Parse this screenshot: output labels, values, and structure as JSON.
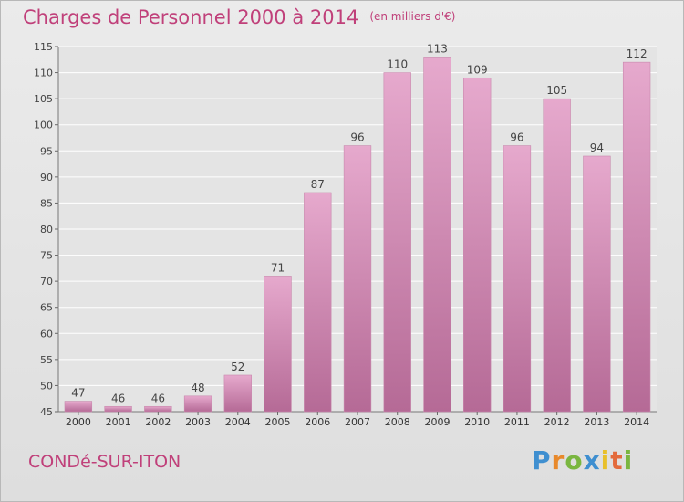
{
  "header": {
    "title": "Charges de Personnel 2000 à 2014",
    "unit": "(en milliers d'€)"
  },
  "footer": {
    "commune": "CONDé-SUR-ITON",
    "logo_letters": [
      {
        "char": "P",
        "color": "#3f8fd0"
      },
      {
        "char": "r",
        "color": "#e8892b"
      },
      {
        "char": "o",
        "color": "#7ab640"
      },
      {
        "char": "x",
        "color": "#3f8fd0"
      },
      {
        "char": "i",
        "color": "#e8c02b"
      },
      {
        "char": "t",
        "color": "#e36a3c"
      },
      {
        "char": "i",
        "color": "#7ab640"
      }
    ]
  },
  "colors": {
    "bar_top": "#e6a9cd",
    "bar_bottom": "#b56a96",
    "title": "#c0407a"
  },
  "chart_data": {
    "type": "bar",
    "title": "Charges de Personnel 2000 à 2014",
    "subtitle": "(en milliers d'€)",
    "categories": [
      "2000",
      "2001",
      "2002",
      "2003",
      "2004",
      "2005",
      "2006",
      "2007",
      "2008",
      "2009",
      "2010",
      "2011",
      "2012",
      "2013",
      "2014"
    ],
    "values": [
      47,
      46,
      46,
      48,
      52,
      71,
      87,
      96,
      110,
      113,
      109,
      96,
      105,
      94,
      112
    ],
    "yticks": [
      45,
      50,
      55,
      60,
      65,
      70,
      75,
      80,
      85,
      90,
      95,
      100,
      105,
      110,
      115
    ],
    "ylim": [
      45,
      115
    ],
    "grid": true,
    "xlabel": "",
    "ylabel": ""
  }
}
